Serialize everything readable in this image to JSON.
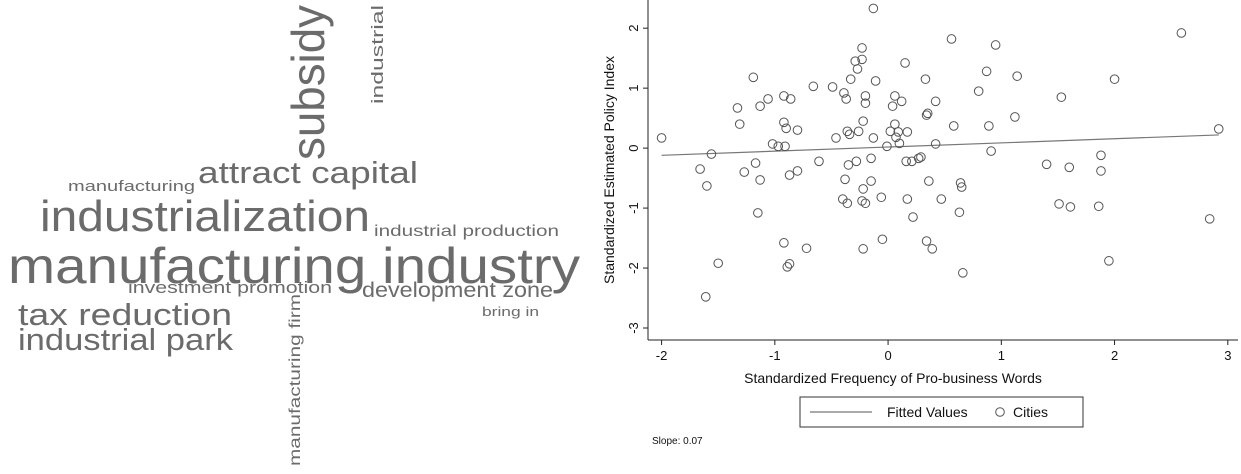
{
  "chart_data": [
    {
      "type": "wordcloud",
      "words": [
        "subsidy",
        "industrial",
        "manufacturing",
        "attract capital",
        "industrialization",
        "industrial production",
        "manufacturing industry",
        "investment promotion",
        "development zone",
        "tax reduction",
        "bring in",
        "industrial park",
        "manufacturing firm"
      ],
      "color": "#6b6b6b"
    },
    {
      "type": "scatter",
      "xlabel": "Standardized Frequency of Pro-business Words",
      "ylabel": "Standardized Estimated Policy Index",
      "xlim": [
        -2.12,
        3.09
      ],
      "ylim": [
        -3.2,
        2.47
      ],
      "xticks": [
        -2,
        -1,
        0,
        1,
        2,
        3
      ],
      "yticks": [
        -3,
        -2,
        -1,
        0,
        1,
        2
      ],
      "legend": "bottom",
      "annotation": "Slope: 0.07",
      "series": [
        {
          "name": "Fitted Values",
          "type": "line",
          "color": "#777777",
          "x": [
            -2,
            2.92
          ],
          "values": [
            -0.12,
            0.22
          ]
        },
        {
          "name": "Cities",
          "type": "scatter",
          "color": "#555555",
          "x": [
            -2.0,
            -1.66,
            -1.6,
            -1.56,
            -1.5,
            -1.61,
            -1.33,
            -1.31,
            -1.19,
            -1.27,
            -1.17,
            -1.15,
            -1.13,
            -1.06,
            -1.13,
            -1.02,
            -0.97,
            -0.92,
            -0.91,
            -0.9,
            -0.92,
            -0.86,
            -0.8,
            -0.87,
            -0.8,
            -0.92,
            -0.89,
            -0.87,
            -0.72,
            -0.66,
            -0.61,
            -0.49,
            -0.46,
            -0.39,
            -0.37,
            -0.38,
            -0.4,
            -0.36,
            -0.36,
            -0.34,
            -0.35,
            -0.33,
            -0.29,
            -0.27,
            -0.23,
            -0.23,
            -0.26,
            -0.22,
            -0.28,
            -0.22,
            -0.2,
            -0.2,
            -0.13,
            -0.11,
            -0.15,
            -0.06,
            -0.2,
            -0.23,
            -0.22,
            -0.05,
            -0.15,
            -0.01,
            0.02,
            0.04,
            0.06,
            0.06,
            0.07,
            0.1,
            0.09,
            0.12,
            0.15,
            0.17,
            0.16,
            0.17,
            0.21,
            0.27,
            0.29,
            0.22,
            0.34,
            0.35,
            0.42,
            0.33,
            0.36,
            0.47,
            0.34,
            0.39,
            0.42,
            0.56,
            0.58,
            0.64,
            0.65,
            0.63,
            0.66,
            0.8,
            0.87,
            0.89,
            0.91,
            0.95,
            1.14,
            1.12,
            1.4,
            1.53,
            1.51,
            1.61,
            1.6,
            1.86,
            1.88,
            1.88,
            1.95,
            2.0,
            2.59,
            2.84,
            2.92,
            -0.13
          ],
          "values": [
            0.17,
            -0.35,
            -0.63,
            -0.1,
            -1.92,
            -2.48,
            0.67,
            0.4,
            1.18,
            -0.4,
            -0.25,
            -1.08,
            0.7,
            0.82,
            -0.53,
            0.07,
            0.03,
            0.43,
            0.03,
            0.33,
            0.87,
            0.82,
            0.3,
            -0.45,
            -0.38,
            -1.58,
            -1.98,
            -1.93,
            -1.67,
            1.03,
            -0.22,
            1.02,
            0.17,
            0.92,
            0.82,
            -0.52,
            -0.85,
            -0.92,
            0.28,
            0.23,
            -0.28,
            1.15,
            1.45,
            1.32,
            1.67,
            1.48,
            0.28,
            0.45,
            -0.22,
            -0.68,
            0.87,
            0.75,
            0.17,
            1.12,
            -0.55,
            -0.82,
            -0.92,
            -0.88,
            -1.68,
            -1.52,
            -0.17,
            0.03,
            0.28,
            0.7,
            0.87,
            0.4,
            0.18,
            0.08,
            0.27,
            0.78,
            1.42,
            0.27,
            -0.22,
            -0.85,
            -0.22,
            -0.17,
            -0.15,
            -1.15,
            0.55,
            0.58,
            0.78,
            1.15,
            -0.55,
            -0.85,
            -1.55,
            -1.68,
            0.07,
            1.82,
            0.37,
            -0.58,
            -0.65,
            -1.07,
            -2.08,
            0.95,
            1.28,
            0.37,
            -0.05,
            1.72,
            1.2,
            0.52,
            -0.27,
            0.85,
            -0.93,
            -0.98,
            -0.32,
            -0.97,
            -0.12,
            -0.38,
            -1.88,
            1.15,
            1.92,
            -1.18,
            0.32,
            2.33
          ]
        }
      ]
    }
  ]
}
